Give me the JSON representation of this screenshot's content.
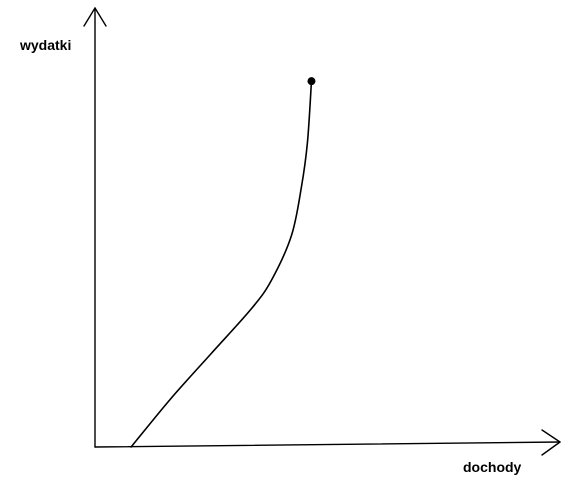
{
  "chart_data": {
    "type": "line",
    "xlabel": "dochody",
    "ylabel": "wydatki",
    "ticks_shown": false,
    "grid": false,
    "series": [
      {
        "x": [
          0,
          1,
          2,
          3,
          3.5,
          4,
          4.25,
          4.4,
          4.5
        ],
        "y": [
          0,
          1.2,
          2.3,
          3.4,
          4.1,
          5.2,
          6.4,
          7.5,
          9.0
        ],
        "end_marker": true
      }
    ],
    "xlim": [
      -0.9,
      10.7
    ],
    "ylim": [
      0,
      10.8
    ]
  }
}
